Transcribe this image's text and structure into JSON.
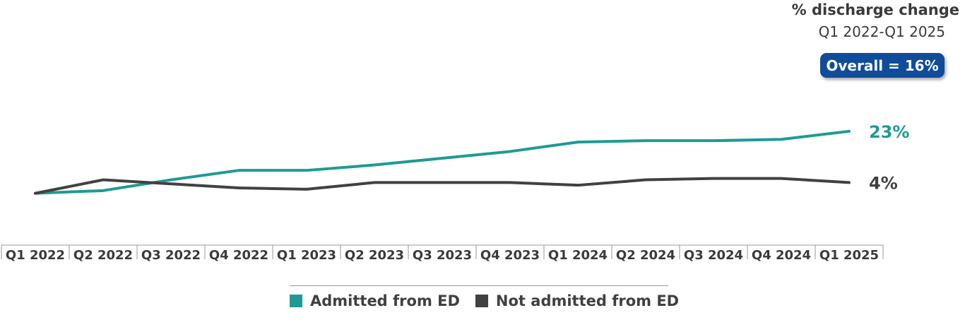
{
  "header": {
    "title": "% discharge change",
    "subtitle": "Q1 2022-Q1 2025",
    "badge": "Overall = 16%"
  },
  "colors": {
    "admitted": "#1f9a94",
    "not_admitted": "#414141",
    "badge": "#0f4c9a"
  },
  "chart_data": {
    "type": "line",
    "categories": [
      "Q1 2022",
      "Q2 2022",
      "Q3 2022",
      "Q4 2022",
      "Q1 2023",
      "Q2 2023",
      "Q3 2023",
      "Q4 2023",
      "Q1 2024",
      "Q2 2024",
      "Q3 2024",
      "Q4 2024",
      "Q1 2025"
    ],
    "series": [
      {
        "name": "Admitted from ED",
        "color": "#1f9a94",
        "values": [
          100,
          101,
          105,
          108.5,
          108.5,
          110.5,
          113,
          115.5,
          119,
          119.5,
          119.5,
          120,
          123
        ],
        "end_label": "23%"
      },
      {
        "name": "Not admitted from ED",
        "color": "#414141",
        "values": [
          100,
          105,
          103.5,
          102,
          101.5,
          104,
          104,
          104,
          103,
          105,
          105.5,
          105.5,
          104
        ],
        "end_label": "4%"
      }
    ],
    "xlabel": "",
    "ylabel": "",
    "ylim": [
      80,
      135
    ],
    "grid": false,
    "legend_position": "bottom"
  }
}
